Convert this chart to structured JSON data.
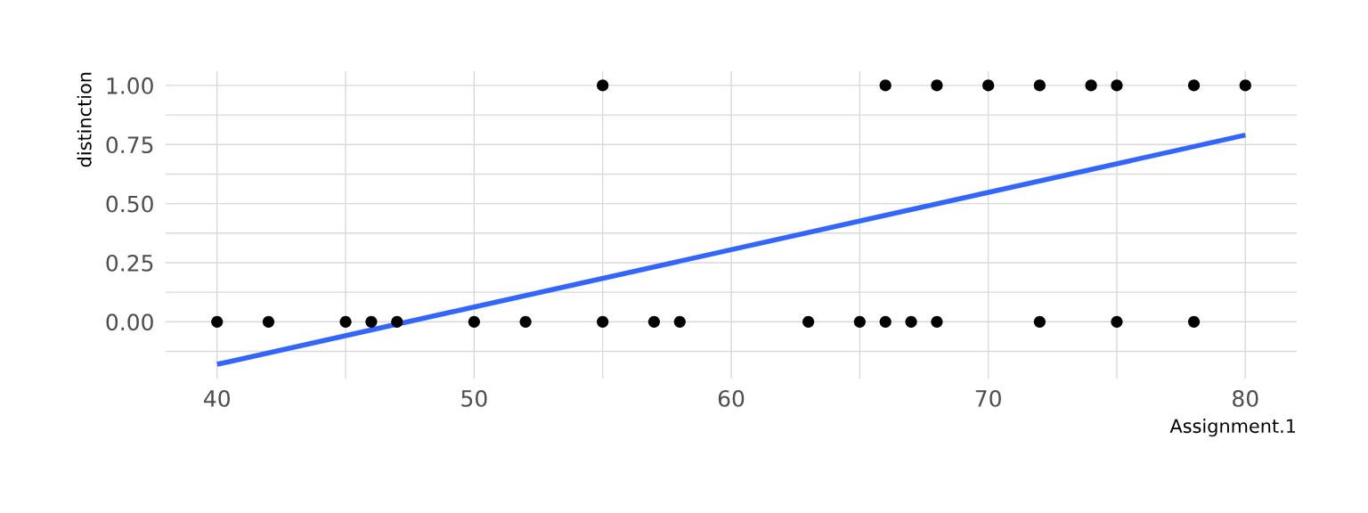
{
  "chart_data": {
    "type": "scatter",
    "xlabel": "Assignment.1",
    "ylabel": "distinction",
    "series": [
      {
        "color": "#000000",
        "marker": "circle",
        "x": [
          40,
          42,
          45,
          46,
          47,
          50,
          52,
          55,
          57,
          58,
          63,
          65,
          66,
          67,
          68,
          72,
          75,
          78,
          55,
          66,
          68,
          70,
          72,
          74,
          75,
          78,
          80
        ],
        "values": [
          0,
          0,
          0,
          0,
          0,
          0,
          0,
          0,
          0,
          0,
          0,
          0,
          0,
          0,
          0,
          0,
          0,
          0,
          1,
          1,
          1,
          1,
          1,
          1,
          1,
          1,
          1
        ]
      },
      {
        "type": "line",
        "color": "#3366ff",
        "line_style": "solid",
        "x": [
          40,
          80
        ],
        "values": [
          -0.18,
          0.79
        ]
      }
    ],
    "xlim": [
      38,
      82
    ],
    "ylim": [
      -0.24,
      1.06
    ],
    "xticks": [
      40,
      {
        "value": 45,
        "label": null
      },
      50,
      {
        "value": 55,
        "label": null
      },
      60,
      {
        "value": 65,
        "label": null
      },
      70,
      {
        "value": 75,
        "label": null
      },
      80
    ],
    "yticks": [
      {
        "value": -0.125,
        "label": null
      },
      {
        "value": 0,
        "label": "0.00"
      },
      {
        "value": 0.125,
        "label": null
      },
      {
        "value": 0.25,
        "label": "0.25"
      },
      {
        "value": 0.375,
        "label": null
      },
      {
        "value": 0.5,
        "label": "0.50"
      },
      {
        "value": 0.625,
        "label": null
      },
      {
        "value": 0.75,
        "label": "0.75"
      },
      {
        "value": 0.875,
        "label": null
      },
      {
        "value": 1,
        "label": "1.00"
      }
    ],
    "grid": true
  }
}
